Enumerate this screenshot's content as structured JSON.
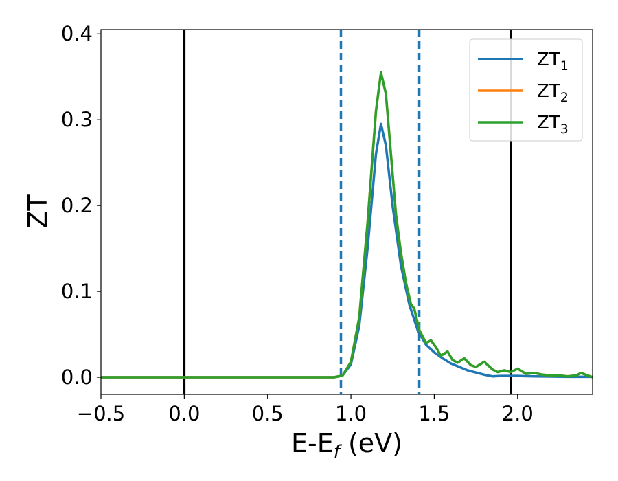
{
  "chart_data": {
    "type": "line",
    "xlabel_main": "E-E",
    "xlabel_sub": "f",
    "xlabel_unit": " (eV)",
    "ylabel": "ZT",
    "xlim": [
      -0.5,
      2.45
    ],
    "ylim": [
      -0.02,
      0.405
    ],
    "xticks": [
      -0.5,
      0.0,
      0.5,
      1.0,
      1.5,
      2.0
    ],
    "xtick_labels": [
      "−0.5",
      "0.0",
      "0.5",
      "1.0",
      "1.5",
      "2.0"
    ],
    "yticks": [
      0.0,
      0.1,
      0.2,
      0.3,
      0.4
    ],
    "ytick_labels": [
      "0.0",
      "0.1",
      "0.2",
      "0.3",
      "0.4"
    ],
    "grid": false,
    "legend_position": "top-right",
    "vertical_lines": [
      {
        "x": 0.0,
        "style": "solid",
        "color": "#000000"
      },
      {
        "x": 1.96,
        "style": "solid",
        "color": "#000000"
      },
      {
        "x": 0.94,
        "style": "dashed",
        "color": "#1f77b4"
      },
      {
        "x": 1.41,
        "style": "dashed",
        "color": "#1f77b4"
      }
    ],
    "series": [
      {
        "name_main": "ZT",
        "name_sub": "1",
        "color": "#1f77b4",
        "x": [
          -0.5,
          0.0,
          0.5,
          0.9,
          0.95,
          1.0,
          1.05,
          1.1,
          1.15,
          1.18,
          1.21,
          1.25,
          1.3,
          1.35,
          1.4,
          1.45,
          1.5,
          1.55,
          1.6,
          1.7,
          1.8,
          1.85,
          1.9,
          2.0,
          2.1,
          2.2,
          2.3,
          2.45
        ],
        "y": [
          0.0,
          0.0,
          0.0,
          0.0,
          0.002,
          0.015,
          0.06,
          0.15,
          0.26,
          0.295,
          0.27,
          0.2,
          0.13,
          0.085,
          0.055,
          0.038,
          0.029,
          0.022,
          0.016,
          0.008,
          0.003,
          0.001,
          0.0015,
          0.0015,
          0.001,
          0.0008,
          0.0005,
          0.0005
        ]
      },
      {
        "name_main": "ZT",
        "name_sub": "2",
        "color": "#ff7f0e",
        "x": [
          -0.5,
          0.0,
          0.5,
          0.9,
          0.95,
          1.0,
          1.05,
          1.1,
          1.15,
          1.18,
          1.21,
          1.24,
          1.27,
          1.3,
          1.33,
          1.36,
          1.38,
          1.41,
          1.45,
          1.48,
          1.51,
          1.54,
          1.58,
          1.61,
          1.64,
          1.68,
          1.72,
          1.75,
          1.8,
          1.85,
          1.88,
          1.92,
          1.96,
          2.0,
          2.05,
          2.1,
          2.15,
          2.2,
          2.25,
          2.3,
          2.35,
          2.38,
          2.45
        ],
        "y": [
          0.0,
          0.0,
          0.0,
          0.0,
          0.002,
          0.018,
          0.07,
          0.18,
          0.31,
          0.355,
          0.33,
          0.26,
          0.19,
          0.145,
          0.11,
          0.085,
          0.08,
          0.055,
          0.04,
          0.043,
          0.035,
          0.025,
          0.03,
          0.02,
          0.017,
          0.022,
          0.014,
          0.012,
          0.018,
          0.009,
          0.006,
          0.008,
          0.006,
          0.01,
          0.004,
          0.005,
          0.003,
          0.002,
          0.002,
          0.001,
          0.002,
          0.005,
          0.0
        ]
      },
      {
        "name_main": "ZT",
        "name_sub": "3",
        "color": "#2ca02c",
        "x": [
          -0.5,
          0.0,
          0.5,
          0.9,
          0.95,
          1.0,
          1.05,
          1.1,
          1.15,
          1.18,
          1.21,
          1.24,
          1.27,
          1.3,
          1.33,
          1.36,
          1.38,
          1.41,
          1.45,
          1.48,
          1.51,
          1.54,
          1.58,
          1.61,
          1.64,
          1.68,
          1.72,
          1.75,
          1.8,
          1.85,
          1.88,
          1.92,
          1.96,
          2.0,
          2.05,
          2.1,
          2.15,
          2.2,
          2.25,
          2.3,
          2.35,
          2.38,
          2.45
        ],
        "y": [
          0.0,
          0.0,
          0.0,
          0.0,
          0.002,
          0.018,
          0.07,
          0.18,
          0.31,
          0.355,
          0.33,
          0.26,
          0.19,
          0.145,
          0.11,
          0.085,
          0.08,
          0.055,
          0.04,
          0.043,
          0.035,
          0.025,
          0.03,
          0.02,
          0.017,
          0.022,
          0.014,
          0.012,
          0.018,
          0.009,
          0.006,
          0.008,
          0.006,
          0.01,
          0.004,
          0.005,
          0.003,
          0.002,
          0.002,
          0.001,
          0.002,
          0.005,
          0.0
        ]
      }
    ]
  }
}
